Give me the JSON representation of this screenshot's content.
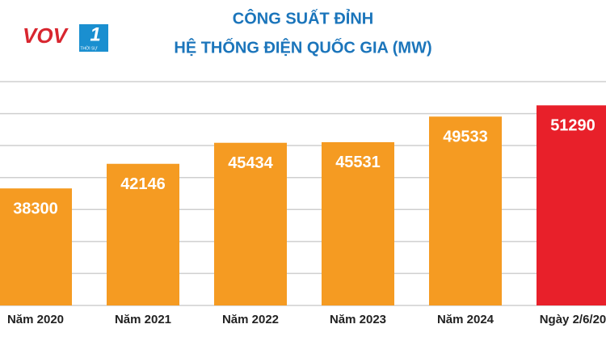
{
  "logo": {
    "text": "VOV",
    "channel": "1",
    "subtitle": "THỜI SỰ"
  },
  "chart_data": {
    "type": "bar",
    "title": "CÔNG SUẤT ĐỈNH",
    "subtitle": "HỆ THỐNG ĐIỆN QUỐC GIA (MW)",
    "categories": [
      "Năm 2020",
      "Năm 2021",
      "Năm 2022",
      "Năm 2023",
      "Năm 2024",
      "Ngày 2/6/20"
    ],
    "values": [
      38300,
      42146,
      45434,
      45531,
      49533,
      51290
    ],
    "colors": [
      "#f59b22",
      "#f59b22",
      "#f59b22",
      "#f59b22",
      "#f59b22",
      "#e8202a"
    ],
    "ylim": [
      20000,
      55000
    ],
    "gridlines": [
      20000,
      25000,
      30000,
      35000,
      40000,
      45000,
      50000,
      55000
    ],
    "grid": true
  }
}
